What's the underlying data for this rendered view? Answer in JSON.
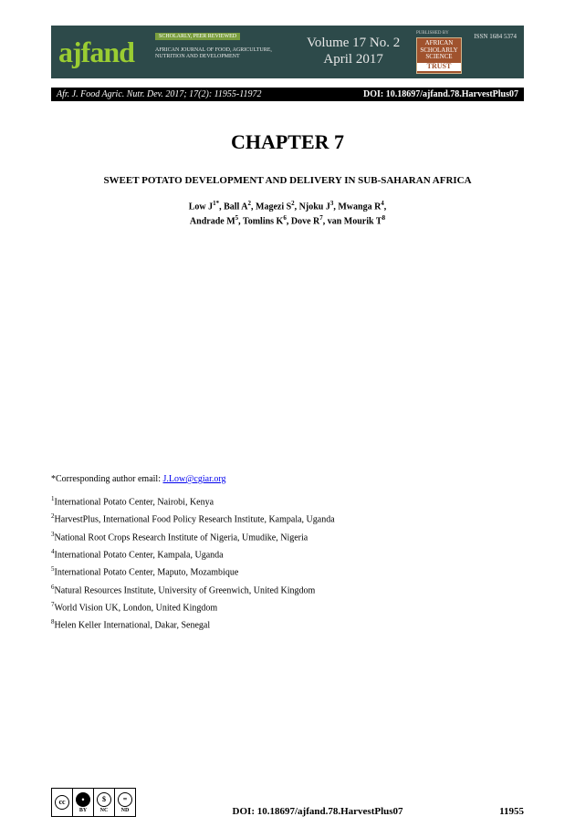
{
  "banner": {
    "logo": "ajfand",
    "scholarly": "SCHOLARLY, PEER REVIEWED",
    "subtitle": "AFRICAN JOURNAL OF FOOD, AGRICULTURE, NUTRITION AND DEVELOPMENT",
    "volume_line1": "Volume 17 No. 2",
    "volume_line2": "April 2017",
    "publisher_label": "PUBLISHED BY",
    "trust_line1": "AFRICAN",
    "trust_line2": "SCHOLARLY",
    "trust_line3": "SCIENCE",
    "trust_line4": "COMMUNICATIONS",
    "trust_bottom": "TRUST",
    "issn": "ISSN 1684 5374"
  },
  "citation": {
    "left": "Afr. J. Food Agric. Nutr. Dev. 2017; 17(2): 11955-11972",
    "right": "DOI: 10.18697/ajfand.78.HarvestPlus07"
  },
  "chapter": "CHAPTER 7",
  "title": "SWEET POTATO DEVELOPMENT AND DELIVERY IN SUB-SAHARAN AFRICA",
  "authors_line1": "Low J",
  "authors_sup1": "1*",
  "authors_line1b": ", Ball A",
  "authors_sup2": "2",
  "authors_line1c": ", Magezi S",
  "authors_sup3": "2",
  "authors_line1d": ", Njoku J",
  "authors_sup4": "3",
  "authors_line1e": ", Mwanga R",
  "authors_sup5": "4",
  "authors_line1f": ",",
  "authors_line2a": "Andrade M",
  "authors_sup6": "5",
  "authors_line2b": ", Tomlins K",
  "authors_sup7": "6",
  "authors_line2c": ", Dove R",
  "authors_sup8": "7",
  "authors_line2d": ", van Mourik T",
  "authors_sup9": "8",
  "corresponding_prefix": "*Corresponding author email: ",
  "corresponding_email": "J.Low@cgiar.org",
  "affiliations": [
    {
      "n": "1",
      "text": "International Potato Center, Nairobi, Kenya"
    },
    {
      "n": "2",
      "text": "HarvestPlus, International Food Policy Research Institute, Kampala, Uganda"
    },
    {
      "n": "3",
      "text": "National Root Crops Research Institute of Nigeria, Umudike, Nigeria"
    },
    {
      "n": "4",
      "text": "International Potato Center, Kampala, Uganda"
    },
    {
      "n": "5",
      "text": "International Potato Center, Maputo, Mozambique"
    },
    {
      "n": "6",
      "text": "Natural Resources Institute, University of Greenwich, United Kingdom"
    },
    {
      "n": "7",
      "text": "World Vision UK, London, United Kingdom"
    },
    {
      "n": "8",
      "text": "Helen Keller International, Dakar, Senegal"
    }
  ],
  "cc": {
    "c1_icon": "cc",
    "c1_label": "",
    "c2_icon": "●",
    "c2_label": "BY",
    "c3_icon": "$",
    "c3_label": "NC",
    "c4_icon": "=",
    "c4_label": "ND"
  },
  "footer_doi": "DOI: 10.18697/ajfand.78.HarvestPlus07",
  "footer_page": "11955"
}
